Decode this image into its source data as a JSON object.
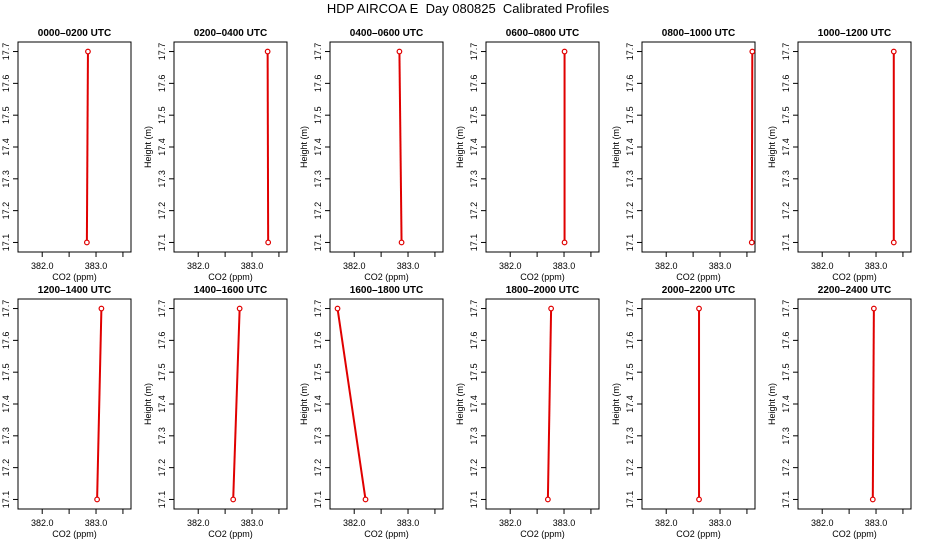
{
  "figure_title": "HDP AIRCOA E  Day 080825  Calibrated Profiles",
  "chart_data": [
    {
      "type": "line",
      "title": "0000–0200 UTC",
      "xlabel": "CO2 (ppm)",
      "ylabel": "Height (m)",
      "x_ticks": [
        "382.0",
        "383.0"
      ],
      "y_ticks": [
        "17.1",
        "17.2",
        "17.3",
        "17.4",
        "17.5",
        "17.6",
        "17.7"
      ],
      "xlim": [
        381.55,
        383.65
      ],
      "ylim": [
        17.07,
        17.73
      ],
      "grid": false,
      "color": "#e00000",
      "points": [
        {
          "x": 382.83,
          "y": 17.1
        },
        {
          "x": 382.85,
          "y": 17.7
        }
      ]
    },
    {
      "type": "line",
      "title": "0200–0400 UTC",
      "xlabel": "CO2 (ppm)",
      "ylabel": "Height (m)",
      "x_ticks": [
        "382.0",
        "383.0"
      ],
      "y_ticks": [
        "17.1",
        "17.2",
        "17.3",
        "17.4",
        "17.5",
        "17.6",
        "17.7"
      ],
      "xlim": [
        381.55,
        383.65
      ],
      "ylim": [
        17.07,
        17.73
      ],
      "grid": false,
      "color": "#e00000",
      "points": [
        {
          "x": 383.3,
          "y": 17.1
        },
        {
          "x": 383.29,
          "y": 17.7
        }
      ]
    },
    {
      "type": "line",
      "title": "0400–0600 UTC",
      "xlabel": "CO2 (ppm)",
      "ylabel": "Height (m)",
      "x_ticks": [
        "382.0",
        "383.0"
      ],
      "y_ticks": [
        "17.1",
        "17.2",
        "17.3",
        "17.4",
        "17.5",
        "17.6",
        "17.7"
      ],
      "xlim": [
        381.55,
        383.65
      ],
      "ylim": [
        17.07,
        17.73
      ],
      "grid": false,
      "color": "#e00000",
      "points": [
        {
          "x": 382.88,
          "y": 17.1
        },
        {
          "x": 382.84,
          "y": 17.7
        }
      ]
    },
    {
      "type": "line",
      "title": "0600–0800 UTC",
      "xlabel": "CO2 (ppm)",
      "ylabel": "Height (m)",
      "x_ticks": [
        "382.0",
        "383.0"
      ],
      "y_ticks": [
        "17.1",
        "17.2",
        "17.3",
        "17.4",
        "17.5",
        "17.6",
        "17.7"
      ],
      "xlim": [
        381.55,
        383.65
      ],
      "ylim": [
        17.07,
        17.73
      ],
      "grid": false,
      "color": "#e00000",
      "points": [
        {
          "x": 383.01,
          "y": 17.1
        },
        {
          "x": 383.01,
          "y": 17.7
        }
      ]
    },
    {
      "type": "line",
      "title": "0800–1000 UTC",
      "xlabel": "CO2 (ppm)",
      "ylabel": "Height (m)",
      "x_ticks": [
        "382.0",
        "383.0"
      ],
      "y_ticks": [
        "17.1",
        "17.2",
        "17.3",
        "17.4",
        "17.5",
        "17.6",
        "17.7"
      ],
      "xlim": [
        381.55,
        383.65
      ],
      "ylim": [
        17.07,
        17.73
      ],
      "grid": false,
      "color": "#e00000",
      "points": [
        {
          "x": 383.59,
          "y": 17.1
        },
        {
          "x": 383.6,
          "y": 17.7
        }
      ]
    },
    {
      "type": "line",
      "title": "1000–1200 UTC",
      "xlabel": "CO2 (ppm)",
      "ylabel": "Height (m)",
      "x_ticks": [
        "382.0",
        "383.0"
      ],
      "y_ticks": [
        "17.1",
        "17.2",
        "17.3",
        "17.4",
        "17.5",
        "17.6",
        "17.7"
      ],
      "xlim": [
        381.55,
        383.65
      ],
      "ylim": [
        17.07,
        17.73
      ],
      "grid": false,
      "color": "#e00000",
      "points": [
        {
          "x": 383.33,
          "y": 17.1
        },
        {
          "x": 383.33,
          "y": 17.7
        }
      ]
    },
    {
      "type": "line",
      "title": "1200–1400 UTC",
      "xlabel": "CO2 (ppm)",
      "ylabel": "Height (m)",
      "x_ticks": [
        "382.0",
        "383.0"
      ],
      "y_ticks": [
        "17.1",
        "17.2",
        "17.3",
        "17.4",
        "17.5",
        "17.6",
        "17.7"
      ],
      "xlim": [
        381.55,
        383.65
      ],
      "ylim": [
        17.07,
        17.73
      ],
      "grid": false,
      "color": "#e00000",
      "points": [
        {
          "x": 383.02,
          "y": 17.1
        },
        {
          "x": 383.1,
          "y": 17.7
        }
      ]
    },
    {
      "type": "line",
      "title": "1400–1600 UTC",
      "xlabel": "CO2 (ppm)",
      "ylabel": "Height (m)",
      "x_ticks": [
        "382.0",
        "383.0"
      ],
      "y_ticks": [
        "17.1",
        "17.2",
        "17.3",
        "17.4",
        "17.5",
        "17.6",
        "17.7"
      ],
      "xlim": [
        381.55,
        383.65
      ],
      "ylim": [
        17.07,
        17.73
      ],
      "grid": false,
      "color": "#e00000",
      "points": [
        {
          "x": 382.65,
          "y": 17.1
        },
        {
          "x": 382.77,
          "y": 17.7
        }
      ]
    },
    {
      "type": "line",
      "title": "1600–1800 UTC",
      "xlabel": "CO2 (ppm)",
      "ylabel": "Height (m)",
      "x_ticks": [
        "382.0",
        "383.0"
      ],
      "y_ticks": [
        "17.1",
        "17.2",
        "17.3",
        "17.4",
        "17.5",
        "17.6",
        "17.7"
      ],
      "xlim": [
        381.55,
        383.65
      ],
      "ylim": [
        17.07,
        17.73
      ],
      "grid": false,
      "color": "#e00000",
      "points": [
        {
          "x": 382.21,
          "y": 17.1
        },
        {
          "x": 381.69,
          "y": 17.7
        }
      ]
    },
    {
      "type": "line",
      "title": "1800–2000 UTC",
      "xlabel": "CO2 (ppm)",
      "ylabel": "Height (m)",
      "x_ticks": [
        "382.0",
        "383.0"
      ],
      "y_ticks": [
        "17.1",
        "17.2",
        "17.3",
        "17.4",
        "17.5",
        "17.6",
        "17.7"
      ],
      "xlim": [
        381.55,
        383.65
      ],
      "ylim": [
        17.07,
        17.73
      ],
      "grid": false,
      "color": "#e00000",
      "points": [
        {
          "x": 382.7,
          "y": 17.1
        },
        {
          "x": 382.76,
          "y": 17.7
        }
      ]
    },
    {
      "type": "line",
      "title": "2000–2200 UTC",
      "xlabel": "CO2 (ppm)",
      "ylabel": "Height (m)",
      "x_ticks": [
        "382.0",
        "383.0"
      ],
      "y_ticks": [
        "17.1",
        "17.2",
        "17.3",
        "17.4",
        "17.5",
        "17.6",
        "17.7"
      ],
      "xlim": [
        381.55,
        383.65
      ],
      "ylim": [
        17.07,
        17.73
      ],
      "grid": false,
      "color": "#e00000",
      "points": [
        {
          "x": 382.61,
          "y": 17.1
        },
        {
          "x": 382.61,
          "y": 17.7
        }
      ]
    },
    {
      "type": "line",
      "title": "2200–2400 UTC",
      "xlabel": "CO2 (ppm)",
      "ylabel": "Height (m)",
      "x_ticks": [
        "382.0",
        "383.0"
      ],
      "y_ticks": [
        "17.1",
        "17.2",
        "17.3",
        "17.4",
        "17.5",
        "17.6",
        "17.7"
      ],
      "xlim": [
        381.55,
        383.65
      ],
      "ylim": [
        17.07,
        17.73
      ],
      "grid": false,
      "color": "#e00000",
      "points": [
        {
          "x": 382.94,
          "y": 17.1
        },
        {
          "x": 382.96,
          "y": 17.7
        }
      ]
    }
  ]
}
